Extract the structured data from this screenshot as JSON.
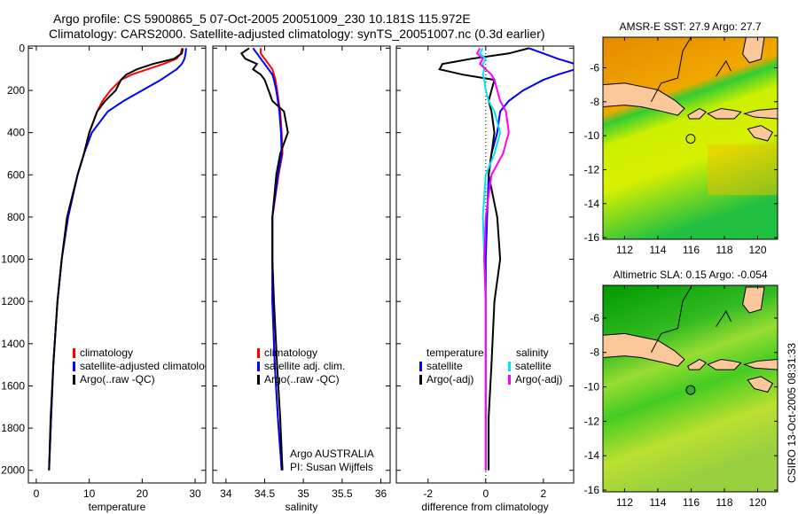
{
  "title_line1": "Argo profile: CS 5900865_5 07-Oct-2005 20051009_230 10.181S 115.972E",
  "title_line2": "Climatology: CARS2000. Satellite-adjusted climatology: synTS_20051007.nc (0.3d earlier)",
  "footer_stamp": "CSIRO 13-Oct-2005 08:31:33",
  "colors": {
    "red": "#ff0000",
    "blue": "#0000ff",
    "black": "#000000",
    "cyan": "#00e5ee",
    "magenta": "#ff00ff",
    "land": "#fcc89a"
  },
  "chart_data": [
    {
      "type": "line",
      "xlabel": "temperature",
      "ylabel": "",
      "xlim": [
        -1.5,
        32
      ],
      "ylim": [
        2060,
        -10
      ],
      "xticks": [
        0,
        10,
        20,
        30
      ],
      "yticks": [
        0,
        200,
        400,
        600,
        800,
        1000,
        1200,
        1400,
        1600,
        1800,
        2000
      ],
      "depth": [
        0,
        25,
        50,
        75,
        100,
        125,
        150,
        200,
        250,
        300,
        400,
        500,
        600,
        800,
        1000,
        1200,
        1500,
        1750,
        2000
      ],
      "series": [
        {
          "name": "climatology",
          "color": "#ff0000",
          "values": [
            27.5,
            27.3,
            26.5,
            24,
            21,
            18,
            16,
            14,
            12.5,
            11.5,
            10,
            9,
            7.8,
            6,
            4.8,
            4,
            3.2,
            2.8,
            2.4
          ]
        },
        {
          "name": "satellite-adjusted climatology",
          "color": "#0000ff",
          "values": [
            28.3,
            28.2,
            28,
            27.5,
            26.5,
            25,
            23.5,
            20,
            16.5,
            13.5,
            10.5,
            9,
            7.8,
            6,
            4.8,
            4,
            3.2,
            2.8,
            2.4
          ]
        },
        {
          "name": "Argo(..raw -QC)",
          "color": "#000000",
          "values": [
            27.7,
            27.5,
            26,
            22,
            19,
            17,
            16,
            15,
            13,
            11.5,
            10,
            9,
            7.8,
            5.8,
            4.8,
            4,
            3.2,
            2.7,
            2.4
          ]
        }
      ],
      "legend": [
        "climatology",
        "satellite-adjusted climatology",
        "Argo(..raw -QC)"
      ],
      "annotations": []
    },
    {
      "type": "line",
      "xlabel": "salinity",
      "xlim": [
        33.83,
        36.12
      ],
      "ylim": [
        2060,
        -10
      ],
      "xticks": [
        34,
        34.5,
        35,
        35.5,
        36
      ],
      "depth": [
        0,
        25,
        50,
        75,
        100,
        125,
        150,
        200,
        250,
        300,
        400,
        500,
        600,
        800,
        1000,
        1200,
        1500,
        1750,
        2000
      ],
      "series": [
        {
          "name": "climatology",
          "color": "#ff0000",
          "values": [
            34.45,
            34.45,
            34.5,
            34.55,
            34.6,
            34.62,
            34.64,
            34.66,
            34.68,
            34.7,
            34.72,
            34.73,
            34.68,
            34.6,
            34.6,
            34.6,
            34.63,
            34.67,
            34.72
          ]
        },
        {
          "name": "satellite adj. clim.",
          "color": "#0000ff",
          "values": [
            34.35,
            34.4,
            34.45,
            34.5,
            34.55,
            34.6,
            34.62,
            34.65,
            34.67,
            34.69,
            34.71,
            34.72,
            34.67,
            34.6,
            34.6,
            34.6,
            34.63,
            34.67,
            34.72
          ]
        },
        {
          "name": "Argo(..raw -QC)",
          "color": "#000000",
          "values": [
            34.3,
            34.2,
            34.25,
            34.4,
            34.35,
            34.45,
            34.5,
            34.55,
            34.6,
            34.75,
            34.8,
            34.7,
            34.65,
            34.6,
            34.6,
            34.62,
            34.66,
            34.7,
            34.73
          ]
        }
      ],
      "legend": [
        "climatology",
        "satellite adj. clim.",
        "Argo(..raw -QC)"
      ],
      "annotations": [
        "Argo AUSTRALIA",
        "PI: Susan Wijffels"
      ]
    },
    {
      "type": "line",
      "xlabel": "difference from climatology",
      "xlim": [
        -3.1,
        3.05
      ],
      "ylim": [
        2060,
        -10
      ],
      "xticks": [
        -2,
        0,
        2
      ],
      "depth": [
        0,
        25,
        50,
        75,
        100,
        125,
        150,
        200,
        250,
        300,
        400,
        500,
        600,
        800,
        1000,
        1200,
        1500,
        1750,
        2000
      ],
      "series": [
        {
          "name": "temperature satellite",
          "color": "#0000ff",
          "values": [
            1.5,
            2.0,
            2.5,
            3.1,
            3.1,
            2.5,
            2.0,
            1.3,
            0.8,
            0.5,
            0.4,
            0.2,
            0.1,
            0.05,
            0,
            0,
            0,
            0,
            0
          ]
        },
        {
          "name": "temperature Argo(-adj)",
          "color": "#000000",
          "values": [
            1.5,
            0.8,
            -0.5,
            -1.5,
            -1.6,
            -0.8,
            0.3,
            0.2,
            0.1,
            0.2,
            0.3,
            0.2,
            0.1,
            0.4,
            0.5,
            0.3,
            0.2,
            0.1,
            0.1
          ]
        },
        {
          "name": "salinity satellite",
          "color": "#00e5ee",
          "values": [
            -0.1,
            -0.2,
            0,
            -0.1,
            -0.05,
            -0.1,
            -0.05,
            0,
            0.1,
            0.3,
            0.5,
            0.3,
            0,
            -0.1,
            -0.05,
            0,
            0,
            0,
            0
          ]
        },
        {
          "name": "salinity Argo(-adj)",
          "color": "#ff00ff",
          "values": [
            -0.2,
            -0.3,
            -0.1,
            -0.2,
            0,
            0.2,
            0.3,
            0.4,
            0.5,
            0.7,
            0.8,
            0.6,
            0.2,
            0,
            -0.05,
            0,
            0,
            0,
            0
          ]
        }
      ],
      "legend_headers": [
        "temperature",
        "salinity"
      ],
      "legend": [
        "satellite",
        "Argo(-adj)",
        "satellite",
        "Argo(-adj)"
      ]
    }
  ],
  "maps": [
    {
      "title": "AMSR-E SST: 27.9 Argo: 27.7",
      "xlim": [
        110.7,
        121.2
      ],
      "ylim": [
        -16.1,
        -4.2
      ],
      "xticks": [
        112,
        114,
        116,
        118,
        120
      ],
      "yticks": [
        -6,
        -8,
        -10,
        -12,
        -14,
        -16
      ],
      "marker": [
        115.972,
        -10.181
      ],
      "palette": "sst"
    },
    {
      "title": "Altimetric SLA: 0.15 Argo: -0.054",
      "xlim": [
        110.7,
        121.2
      ],
      "ylim": [
        -16.1,
        -4.1
      ],
      "xticks": [
        112,
        114,
        116,
        118,
        120
      ],
      "yticks": [
        -6,
        -8,
        -10,
        -12,
        -14,
        -16
      ],
      "marker": [
        115.972,
        -10.181
      ],
      "palette": "sla"
    }
  ]
}
